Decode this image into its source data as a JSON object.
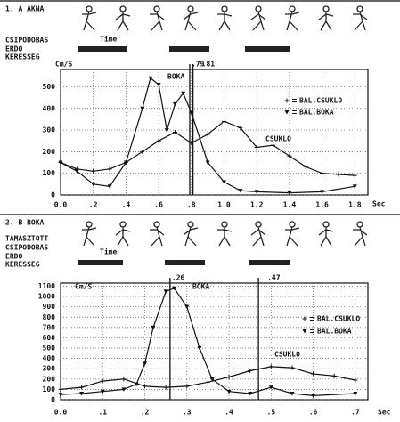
{
  "chart_data": [
    {
      "type": "line",
      "header_title": "1. A AKNA",
      "header_rows": [
        "CSIPODOBAS",
        "ERDO",
        "KERESSEG"
      ],
      "time_label": "Time",
      "y_label": "Cm/S",
      "x_label": "Sec",
      "annotations": [
        "BOKA",
        "CSUKLO"
      ],
      "markers": [
        {
          "value": 0.79,
          "label": ".79"
        },
        {
          "value": 0.81,
          "label": ".81"
        }
      ],
      "xlim": [
        0,
        1.88
      ],
      "ylim": [
        0,
        580
      ],
      "grid": true,
      "xticks": [
        {
          "value": 0,
          "label": "0.0"
        },
        {
          "value": 0.2,
          "label": ".2"
        },
        {
          "value": 0.4,
          "label": ".4"
        },
        {
          "value": 0.6,
          "label": ".6"
        },
        {
          "value": 0.8,
          "label": ".8"
        },
        {
          "value": 1,
          "label": "1.0"
        },
        1.2,
        1.4,
        1.6,
        1.8
      ],
      "yticks": [
        0,
        100,
        200,
        300,
        400,
        500
      ],
      "series": [
        {
          "name": "BAL.CSUKLO",
          "color": "#111111",
          "marker": "plus",
          "x": [
            0,
            0.1,
            0.2,
            0.3,
            0.4,
            0.5,
            0.6,
            0.7,
            0.8,
            0.9,
            1.0,
            1.1,
            1.2,
            1.3,
            1.4,
            1.5,
            1.6,
            1.7,
            1.8
          ],
          "values": [
            150,
            120,
            110,
            120,
            150,
            200,
            250,
            290,
            240,
            280,
            340,
            310,
            220,
            230,
            180,
            130,
            100,
            95,
            90
          ]
        },
        {
          "name": "BAL.BOKA",
          "color": "#111111",
          "marker": "triangle",
          "x": [
            0,
            0.1,
            0.2,
            0.3,
            0.4,
            0.5,
            0.55,
            0.6,
            0.65,
            0.7,
            0.75,
            0.8,
            0.9,
            1.0,
            1.1,
            1.2,
            1.4,
            1.6,
            1.8
          ],
          "values": [
            150,
            110,
            50,
            40,
            150,
            400,
            540,
            510,
            300,
            420,
            470,
            380,
            150,
            60,
            20,
            15,
            10,
            15,
            40
          ]
        }
      ]
    },
    {
      "type": "line",
      "header_title": "2. B BOKA",
      "header_rows": [
        "TAMASZTOTT",
        "CSIPODOBAS",
        "ERDO",
        "KERESSEG"
      ],
      "time_label": "Time",
      "y_label": "Cm/S",
      "x_label": "Sec",
      "annotations": [
        "BOKA",
        "CSUKLO"
      ],
      "markers": [
        {
          "value": 0.26,
          "label": ".26"
        },
        {
          "value": 0.47,
          "label": ".47"
        }
      ],
      "xlim": [
        0,
        0.73
      ],
      "ylim": [
        0,
        1130
      ],
      "grid": true,
      "xticks": [
        {
          "value": 0,
          "label": "0.0"
        },
        {
          "value": 0.1,
          "label": ".1"
        },
        {
          "value": 0.2,
          "label": ".2"
        },
        {
          "value": 0.3,
          "label": ".3"
        },
        {
          "value": 0.4,
          "label": ".4"
        },
        {
          "value": 0.5,
          "label": ".5"
        },
        {
          "value": 0.6,
          "label": ".6"
        },
        {
          "value": 0.7,
          "label": ".7"
        }
      ],
      "yticks": [
        0,
        100,
        200,
        300,
        400,
        500,
        600,
        700,
        800,
        900,
        1000,
        1100
      ],
      "series": [
        {
          "name": "BAL.CSUKLO",
          "color": "#111111",
          "marker": "plus",
          "x": [
            0,
            0.05,
            0.1,
            0.15,
            0.2,
            0.25,
            0.3,
            0.35,
            0.4,
            0.45,
            0.5,
            0.55,
            0.6,
            0.65,
            0.7
          ],
          "values": [
            100,
            120,
            180,
            200,
            130,
            120,
            130,
            170,
            220,
            280,
            320,
            310,
            250,
            230,
            190
          ]
        },
        {
          "name": "BAL.BOKA",
          "color": "#111111",
          "marker": "triangle",
          "x": [
            0,
            0.05,
            0.1,
            0.15,
            0.18,
            0.2,
            0.22,
            0.25,
            0.27,
            0.3,
            0.33,
            0.36,
            0.4,
            0.45,
            0.5,
            0.55,
            0.6,
            0.7
          ],
          "values": [
            50,
            60,
            80,
            100,
            150,
            350,
            700,
            1050,
            1080,
            900,
            500,
            200,
            80,
            60,
            120,
            60,
            40,
            60
          ]
        }
      ]
    }
  ]
}
